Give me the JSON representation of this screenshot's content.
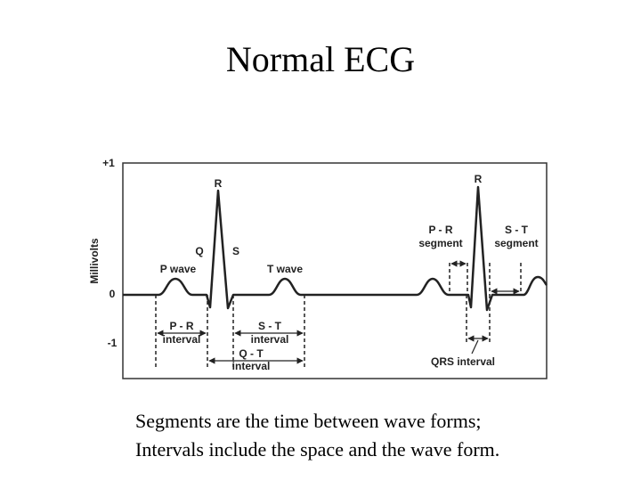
{
  "title": "Normal ECG",
  "diagram": {
    "y_axis_label": "Millivolts",
    "y_ticks": [
      "+1",
      "0",
      "-1"
    ],
    "wave_labels": [
      "R",
      "R",
      "Q",
      "S",
      "P wave",
      "T wave"
    ],
    "segments": [
      {
        "name": "P - R",
        "kind": "segment"
      },
      {
        "name": "S - T",
        "kind": "segment"
      }
    ],
    "intervals": [
      {
        "name": "P - R",
        "kind": "interval"
      },
      {
        "name": "S - T",
        "kind": "interval"
      },
      {
        "name": "Q - T",
        "kind": "interval"
      }
    ],
    "qrs_label": "QRS interval"
  },
  "caption": [
    "Segments are the time between wave forms;",
    "Intervals include the space and the wave form."
  ]
}
